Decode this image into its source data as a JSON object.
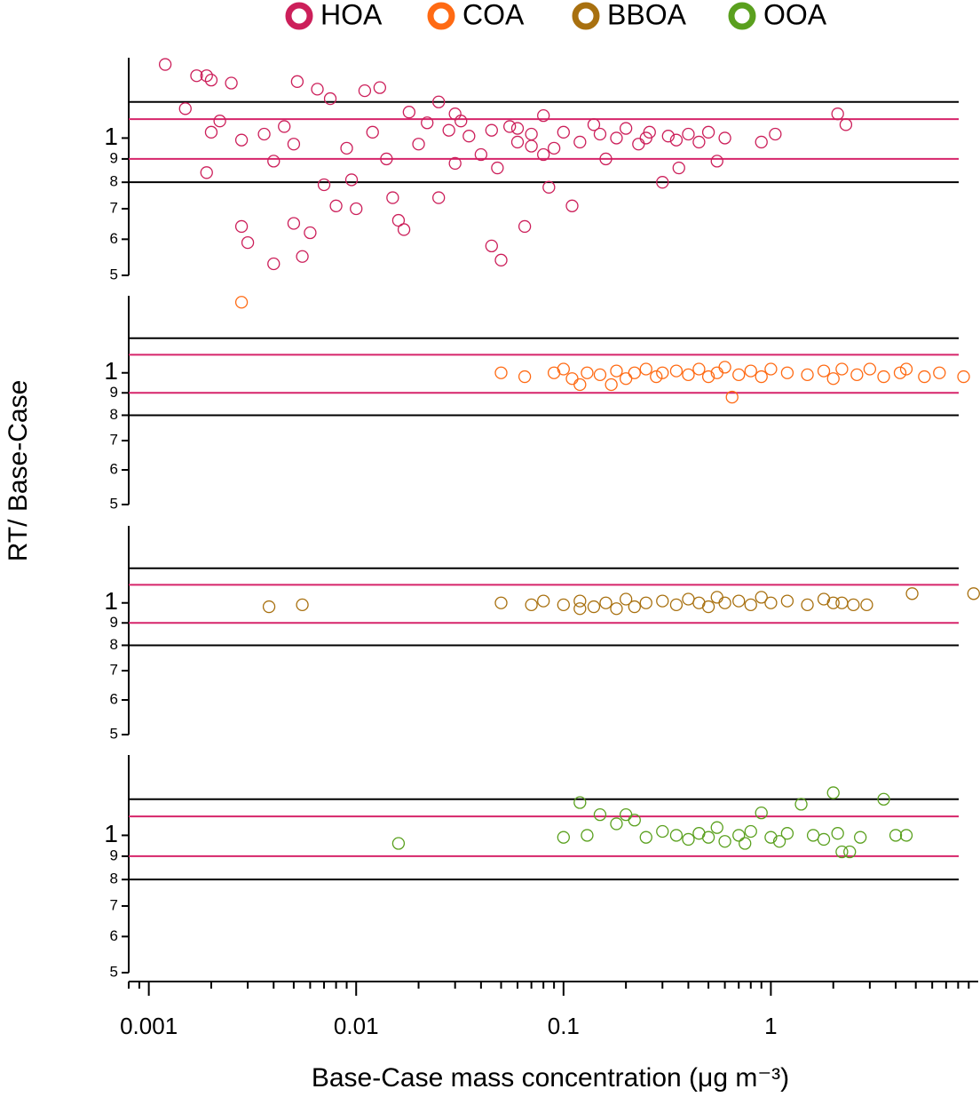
{
  "ylabel": "RT/ Base-Case",
  "chart_data": [
    {
      "type": "scatter",
      "log_x": true,
      "log_y": true,
      "xlim": [
        0.0008,
        10
      ],
      "ylim": [
        0.5,
        1.5
      ],
      "yticks": [
        {
          "value": 0.5,
          "label": "5"
        },
        {
          "value": 0.6,
          "label": "6"
        },
        {
          "value": 0.7,
          "label": "7"
        },
        {
          "value": 0.8,
          "label": "8"
        },
        {
          "value": 0.9,
          "label": "9"
        },
        1
      ],
      "hlines": [
        {
          "value": 1.2,
          "color": "#000000"
        },
        {
          "value": 1.1,
          "color": "#d6246a"
        },
        {
          "value": 0.9,
          "color": "#d6246a"
        },
        {
          "value": 0.8,
          "color": "#000000"
        }
      ],
      "series": [
        {
          "name": "HOA",
          "color": "#cc1f5a",
          "x": [
            0.0012,
            0.0015,
            0.0017,
            0.0019,
            0.002,
            0.0025,
            0.002,
            0.0022,
            0.0019,
            0.0028,
            0.0028,
            0.003,
            0.0036,
            0.004,
            0.004,
            0.0045,
            0.005,
            0.005,
            0.0052,
            0.0055,
            0.006,
            0.0065,
            0.007,
            0.0075,
            0.008,
            0.009,
            0.0095,
            0.01,
            0.011,
            0.012,
            0.013,
            0.014,
            0.015,
            0.016,
            0.017,
            0.018,
            0.02,
            0.022,
            0.025,
            0.025,
            0.028,
            0.03,
            0.032,
            0.035,
            0.04,
            0.045,
            0.048,
            0.05,
            0.055,
            0.06,
            0.065,
            0.07,
            0.08,
            0.085,
            0.09,
            0.1,
            0.11,
            0.12,
            0.14,
            0.16,
            0.18,
            0.2,
            0.23,
            0.26,
            0.3,
            0.32,
            0.36,
            0.4,
            0.45,
            0.5,
            0.55,
            0.6,
            0.9,
            1.05,
            2.1,
            2.3,
            0.045,
            0.06,
            0.07,
            0.15,
            0.25,
            0.35,
            0.08,
            0.03
          ],
          "values": [
            1.45,
            1.16,
            1.37,
            1.37,
            1.34,
            1.32,
            1.03,
            1.09,
            0.84,
            0.99,
            0.64,
            0.59,
            1.02,
            0.89,
            0.53,
            1.06,
            0.97,
            0.65,
            1.33,
            0.55,
            0.62,
            1.28,
            0.79,
            1.22,
            0.71,
            0.95,
            0.81,
            0.7,
            1.27,
            1.03,
            1.29,
            0.9,
            0.74,
            0.66,
            0.63,
            1.14,
            0.97,
            1.08,
            0.74,
            1.2,
            1.04,
            0.88,
            1.09,
            1.01,
            0.92,
            0.58,
            0.86,
            0.54,
            1.06,
            0.98,
            0.64,
            1.02,
            1.12,
            0.78,
            0.95,
            1.03,
            0.71,
            0.98,
            1.07,
            0.9,
            1.0,
            1.05,
            0.97,
            1.03,
            0.8,
            1.01,
            0.86,
            1.02,
            0.98,
            1.03,
            0.89,
            1.0,
            0.98,
            1.02,
            1.13,
            1.07,
            1.04,
            1.05,
            0.96,
            1.02,
            1.0,
            0.99,
            0.92,
            1.13
          ]
        }
      ]
    },
    {
      "type": "scatter",
      "log_x": true,
      "log_y": true,
      "xlim": [
        0.0008,
        10
      ],
      "ylim": [
        0.5,
        1.5
      ],
      "yticks": [
        {
          "value": 0.5,
          "label": "5"
        },
        {
          "value": 0.6,
          "label": "6"
        },
        {
          "value": 0.7,
          "label": "7"
        },
        {
          "value": 0.8,
          "label": "8"
        },
        {
          "value": 0.9,
          "label": "9"
        },
        1
      ],
      "hlines": [
        {
          "value": 1.2,
          "color": "#000000"
        },
        {
          "value": 1.1,
          "color": "#d6246a"
        },
        {
          "value": 0.9,
          "color": "#d6246a"
        },
        {
          "value": 0.8,
          "color": "#000000"
        }
      ],
      "series": [
        {
          "name": "COA",
          "color": "#ff6a13",
          "x": [
            0.0028,
            0.05,
            0.065,
            0.09,
            0.1,
            0.11,
            0.13,
            0.15,
            0.18,
            0.2,
            0.22,
            0.25,
            0.28,
            0.3,
            0.35,
            0.4,
            0.45,
            0.5,
            0.55,
            0.6,
            0.65,
            0.7,
            0.8,
            0.9,
            1.0,
            1.2,
            1.5,
            1.8,
            2.0,
            2.2,
            2.6,
            3.0,
            3.5,
            4.2,
            4.5,
            5.5,
            6.5,
            8.5,
            0.12,
            0.17
          ],
          "values": [
            1.45,
            1.0,
            0.98,
            1.0,
            1.02,
            0.97,
            1.0,
            0.99,
            1.01,
            0.97,
            1.0,
            1.02,
            0.98,
            1.0,
            1.01,
            0.99,
            1.02,
            0.98,
            1.0,
            1.03,
            0.88,
            0.99,
            1.01,
            0.98,
            1.02,
            1.0,
            0.99,
            1.01,
            0.97,
            1.02,
            0.99,
            1.02,
            0.98,
            1.0,
            1.02,
            0.98,
            1.0,
            0.98,
            0.94,
            0.94
          ]
        }
      ]
    },
    {
      "type": "scatter",
      "log_x": true,
      "log_y": true,
      "xlim": [
        0.0008,
        10
      ],
      "ylim": [
        0.5,
        1.5
      ],
      "yticks": [
        {
          "value": 0.5,
          "label": "5"
        },
        {
          "value": 0.6,
          "label": "6"
        },
        {
          "value": 0.7,
          "label": "7"
        },
        {
          "value": 0.8,
          "label": "8"
        },
        {
          "value": 0.9,
          "label": "9"
        },
        1
      ],
      "hlines": [
        {
          "value": 1.2,
          "color": "#000000"
        },
        {
          "value": 1.1,
          "color": "#d6246a"
        },
        {
          "value": 0.9,
          "color": "#d6246a"
        },
        {
          "value": 0.8,
          "color": "#000000"
        }
      ],
      "series": [
        {
          "name": "BBOA",
          "color": "#a8700f",
          "x": [
            0.0038,
            0.0055,
            0.05,
            0.07,
            0.08,
            0.1,
            0.12,
            0.14,
            0.16,
            0.2,
            0.22,
            0.25,
            0.3,
            0.35,
            0.4,
            0.45,
            0.5,
            0.55,
            0.6,
            0.7,
            0.8,
            0.9,
            1.0,
            1.2,
            1.5,
            1.8,
            2.0,
            2.2,
            2.5,
            2.9,
            4.8,
            9.5,
            0.18,
            0.12
          ],
          "values": [
            0.98,
            0.99,
            1.0,
            0.99,
            1.01,
            0.99,
            1.01,
            0.98,
            1.0,
            1.02,
            0.98,
            1.0,
            1.01,
            0.99,
            1.02,
            1.0,
            0.98,
            1.03,
            1.0,
            1.01,
            0.99,
            1.03,
            1.0,
            1.01,
            0.99,
            1.02,
            1.0,
            1.0,
            0.99,
            0.99,
            1.05,
            1.05,
            0.97,
            0.97
          ]
        }
      ]
    },
    {
      "type": "scatter",
      "log_x": true,
      "log_y": true,
      "xlim": [
        0.0008,
        10
      ],
      "ylim": [
        0.5,
        1.5
      ],
      "yticks": [
        {
          "value": 0.5,
          "label": "5"
        },
        {
          "value": 0.6,
          "label": "6"
        },
        {
          "value": 0.7,
          "label": "7"
        },
        {
          "value": 0.8,
          "label": "8"
        },
        {
          "value": 0.9,
          "label": "9"
        },
        1
      ],
      "hlines": [
        {
          "value": 1.2,
          "color": "#000000"
        },
        {
          "value": 1.1,
          "color": "#d6246a"
        },
        {
          "value": 0.9,
          "color": "#d6246a"
        },
        {
          "value": 0.8,
          "color": "#000000"
        }
      ],
      "xticks": [
        0.001,
        0.01,
        0.1,
        1
      ],
      "xminorticks": [
        0.0008,
        0.0009,
        0.002,
        0.003,
        0.004,
        0.005,
        0.006,
        0.007,
        0.008,
        0.009,
        0.02,
        0.03,
        0.04,
        0.05,
        0.06,
        0.07,
        0.08,
        0.09,
        0.2,
        0.3,
        0.4,
        0.5,
        0.6,
        0.7,
        0.8,
        0.9,
        2,
        3,
        4,
        5,
        6,
        7,
        8,
        9
      ],
      "xlabel": "Base-Case mass concentration (μg m⁻³)",
      "series": [
        {
          "name": "OOA",
          "color": "#5aa01e",
          "x": [
            0.016,
            0.12,
            0.15,
            0.18,
            0.2,
            0.22,
            0.1,
            0.13,
            0.25,
            0.3,
            0.35,
            0.4,
            0.45,
            0.5,
            0.55,
            0.6,
            0.7,
            0.8,
            0.9,
            1.0,
            1.2,
            1.4,
            1.6,
            1.8,
            2.0,
            2.1,
            2.2,
            2.4,
            2.7,
            3.5,
            4.0,
            4.5,
            1.1,
            0.75
          ],
          "values": [
            0.96,
            1.18,
            1.11,
            1.06,
            1.11,
            1.08,
            0.99,
            1.0,
            0.99,
            1.02,
            1.0,
            0.98,
            1.01,
            0.99,
            1.04,
            0.97,
            1.0,
            1.02,
            1.12,
            0.99,
            1.01,
            1.17,
            1.0,
            0.98,
            1.24,
            1.01,
            0.92,
            0.92,
            0.99,
            1.2,
            1.0,
            1.0,
            0.97,
            0.96
          ]
        }
      ]
    }
  ]
}
